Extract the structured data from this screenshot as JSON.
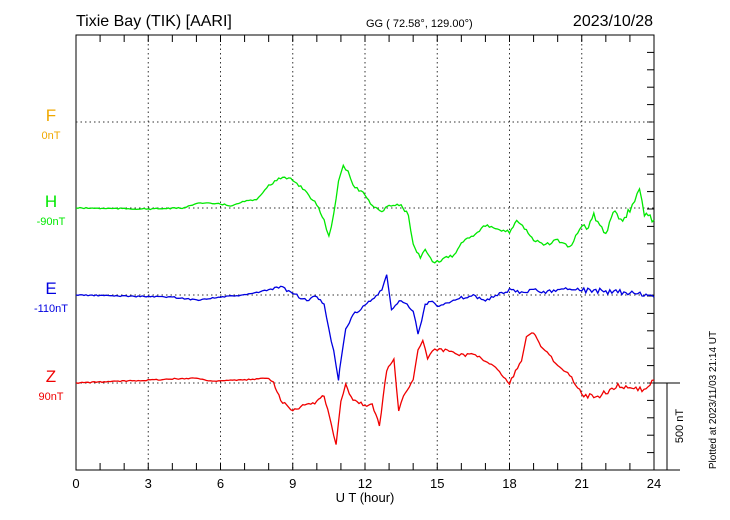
{
  "header": {
    "station": "Tixie Bay (TIK)  [AARI]",
    "coords": "GG ( 72.58°, 129.00°)",
    "date": "2023/10/28"
  },
  "footer": {
    "plotted": "Plotted at 2023/11/03 21:14 UT",
    "scale": "500 nT"
  },
  "chart_data": {
    "type": "line",
    "title": "Tixie Bay (TIK)  [AARI]",
    "xlabel": "U T (hour)",
    "xlim": [
      0,
      24
    ],
    "xticks": [
      "0",
      "3",
      "6",
      "9",
      "12",
      "15",
      "18",
      "21",
      "24"
    ],
    "grid": true,
    "scale_bar_nT": 500,
    "series": [
      {
        "name": "F",
        "offset_label": "0nT",
        "color": "#f0a800",
        "points": []
      },
      {
        "name": "H",
        "offset_label": "-90nT",
        "color": "#00e800",
        "points": [
          [
            0,
            0
          ],
          [
            3,
            -6
          ],
          [
            4.5,
            0
          ],
          [
            5,
            29
          ],
          [
            6,
            23
          ],
          [
            6.5,
            12
          ],
          [
            7,
            40
          ],
          [
            7.5,
            46
          ],
          [
            8,
            132
          ],
          [
            8.5,
            173
          ],
          [
            9,
            161
          ],
          [
            9.5,
            104
          ],
          [
            10,
            17
          ],
          [
            10.3,
            -69
          ],
          [
            10.5,
            -167
          ],
          [
            10.7,
            -40
          ],
          [
            10.9,
            161
          ],
          [
            11.1,
            247
          ],
          [
            11.3,
            207
          ],
          [
            11.5,
            132
          ],
          [
            12,
            75
          ],
          [
            12.3,
            17
          ],
          [
            12.7,
            -23
          ],
          [
            13,
            17
          ],
          [
            13.5,
            17
          ],
          [
            13.8,
            -40
          ],
          [
            14,
            -213
          ],
          [
            14.3,
            -288
          ],
          [
            14.5,
            -242
          ],
          [
            14.8,
            -311
          ],
          [
            15,
            -311
          ],
          [
            15.3,
            -288
          ],
          [
            15.7,
            -270
          ],
          [
            16,
            -196
          ],
          [
            16.5,
            -155
          ],
          [
            17,
            -98
          ],
          [
            17.5,
            -127
          ],
          [
            18,
            -138
          ],
          [
            18.3,
            -69
          ],
          [
            18.7,
            -127
          ],
          [
            19,
            -184
          ],
          [
            19.5,
            -213
          ],
          [
            20,
            -184
          ],
          [
            20.5,
            -230
          ],
          [
            21,
            -98
          ],
          [
            21.2,
            -127
          ],
          [
            21.5,
            -40
          ],
          [
            22,
            -155
          ],
          [
            22.3,
            -12
          ],
          [
            22.7,
            -69
          ],
          [
            23,
            -12
          ],
          [
            23.2,
            46
          ],
          [
            23.4,
            115
          ],
          [
            23.6,
            -40
          ],
          [
            24,
            -69
          ]
        ]
      },
      {
        "name": "E",
        "offset_label": "-110nT",
        "color": "#0000e0",
        "points": [
          [
            0,
            0
          ],
          [
            4,
            -12
          ],
          [
            5,
            -29
          ],
          [
            6,
            -12
          ],
          [
            7,
            0
          ],
          [
            8,
            29
          ],
          [
            8.5,
            46
          ],
          [
            9,
            12
          ],
          [
            9.5,
            -29
          ],
          [
            10,
            -12
          ],
          [
            10.3,
            -58
          ],
          [
            10.5,
            -201
          ],
          [
            10.7,
            -316
          ],
          [
            10.9,
            -489
          ],
          [
            11,
            -374
          ],
          [
            11.2,
            -201
          ],
          [
            11.5,
            -115
          ],
          [
            12,
            -58
          ],
          [
            12.3,
            -29
          ],
          [
            12.7,
            29
          ],
          [
            12.9,
            115
          ],
          [
            13.1,
            -86
          ],
          [
            13.5,
            -29
          ],
          [
            14,
            -86
          ],
          [
            14.2,
            -230
          ],
          [
            14.5,
            -58
          ],
          [
            14.8,
            -29
          ],
          [
            15,
            -58
          ],
          [
            15.5,
            -46
          ],
          [
            16,
            -17
          ],
          [
            16.5,
            -6
          ],
          [
            17,
            -29
          ],
          [
            17.5,
            0
          ],
          [
            18,
            29
          ],
          [
            18.5,
            12
          ],
          [
            19,
            29
          ],
          [
            19.5,
            17
          ],
          [
            20,
            29
          ],
          [
            20.5,
            40
          ],
          [
            21,
            29
          ],
          [
            21.5,
            29
          ],
          [
            22,
            17
          ],
          [
            23,
            12
          ],
          [
            24,
            -12
          ]
        ]
      },
      {
        "name": "Z",
        "offset_label": "90nT",
        "color": "#f00000",
        "points": [
          [
            0,
            0
          ],
          [
            3,
            17
          ],
          [
            5,
            29
          ],
          [
            5.5,
            12
          ],
          [
            7,
            17
          ],
          [
            8,
            29
          ],
          [
            8.2,
            6
          ],
          [
            8.5,
            -98
          ],
          [
            9,
            -155
          ],
          [
            9.5,
            -127
          ],
          [
            10,
            -109
          ],
          [
            10.3,
            -69
          ],
          [
            10.6,
            -242
          ],
          [
            10.8,
            -357
          ],
          [
            11,
            -98
          ],
          [
            11.2,
            -12
          ],
          [
            11.5,
            -98
          ],
          [
            12,
            -127
          ],
          [
            12.3,
            -127
          ],
          [
            12.6,
            -242
          ],
          [
            12.9,
            75
          ],
          [
            13.2,
            132
          ],
          [
            13.4,
            -155
          ],
          [
            13.6,
            -69
          ],
          [
            14,
            17
          ],
          [
            14.2,
            189
          ],
          [
            14.4,
            247
          ],
          [
            14.6,
            132
          ],
          [
            14.8,
            189
          ],
          [
            15,
            189
          ],
          [
            15.5,
            189
          ],
          [
            16,
            161
          ],
          [
            16.5,
            161
          ],
          [
            17,
            132
          ],
          [
            17.5,
            75
          ],
          [
            18,
            0
          ],
          [
            18.5,
            132
          ],
          [
            18.7,
            270
          ],
          [
            19,
            288
          ],
          [
            19.3,
            213
          ],
          [
            20,
            104
          ],
          [
            20.5,
            46
          ],
          [
            21,
            -58
          ],
          [
            21.5,
            -86
          ],
          [
            22,
            -52
          ],
          [
            22.5,
            -12
          ],
          [
            23,
            -40
          ],
          [
            23.5,
            -40
          ],
          [
            24,
            17
          ]
        ]
      }
    ]
  }
}
